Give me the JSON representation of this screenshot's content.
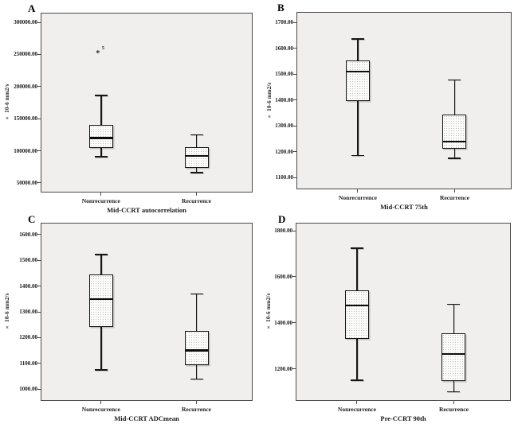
{
  "figure": {
    "ylabel_shared": "× 10-6 mm2/s",
    "group_labels": [
      "Nonrecurrence",
      "Recurrence"
    ],
    "colors": {
      "plot_background": "#f0efed",
      "frame": "#4a4a4a",
      "box_border": "#141414",
      "box_fill": "#fcfcfb",
      "median": "#0d0d0d",
      "page_background": "#ffffff"
    }
  },
  "chart_data": [
    {
      "type": "box",
      "panel": "A",
      "title": "Mid-CCRT autocorrelation",
      "ylabel": "× 10-6 mm2/s",
      "categories": [
        "Nonrecurrence",
        "Recurrence"
      ],
      "yticks": [
        50000,
        100000,
        150000,
        200000,
        250000,
        300000
      ],
      "ytick_labels": [
        "50000.00",
        "100000.00",
        "150000.00",
        "200000.00",
        "250000.00",
        "300000.00"
      ],
      "ylim": [
        35000,
        315000
      ],
      "grid": false,
      "legend": false,
      "series": [
        {
          "category": "Nonrecurrence",
          "whisker_low": 91000,
          "q1": 104000,
          "median": 120000,
          "q3": 140000,
          "whisker_high": 186000,
          "outliers": [
            {
              "value": 256000,
              "label": "5",
              "marker": "asterisk-extreme"
            }
          ]
        },
        {
          "category": "Recurrence",
          "whisker_low": 66000,
          "q1": 74000,
          "median": 92000,
          "q3": 106000,
          "whisker_high": 125000,
          "outliers": []
        }
      ]
    },
    {
      "type": "box",
      "panel": "B",
      "title": "Mid-CCRT 75th",
      "ylabel": "× 10-6 mm2/s",
      "categories": [
        "Nonrecurrence",
        "Recurrence"
      ],
      "yticks": [
        1100,
        1200,
        1300,
        1400,
        1500,
        1600,
        1700
      ],
      "ytick_labels": [
        "1100.00",
        "1200.00",
        "1300.00",
        "1400.00",
        "1500.00",
        "1600.00",
        "1700.00"
      ],
      "ylim": [
        1055,
        1740
      ],
      "grid": false,
      "legend": false,
      "series": [
        {
          "category": "Nonrecurrence",
          "whisker_low": 1185,
          "q1": 1395,
          "median": 1510,
          "q3": 1553,
          "whisker_high": 1635,
          "outliers": []
        },
        {
          "category": "Recurrence",
          "whisker_low": 1175,
          "q1": 1212,
          "median": 1240,
          "q3": 1345,
          "whisker_high": 1478,
          "outliers": []
        }
      ]
    },
    {
      "type": "box",
      "panel": "C",
      "title": "Mid-CCRT ADCmean",
      "ylabel": "× 10-6 mm2/s",
      "categories": [
        "Nonrecurrence",
        "Recurrence"
      ],
      "yticks": [
        1000,
        1100,
        1200,
        1300,
        1400,
        1500,
        1600
      ],
      "ytick_labels": [
        "1000.00",
        "1100.00",
        "1200.00",
        "1300.00",
        "1400.00",
        "1500.00",
        "1600.00"
      ],
      "ylim": [
        955,
        1645
      ],
      "grid": false,
      "legend": false,
      "series": [
        {
          "category": "Nonrecurrence",
          "whisker_low": 1075,
          "q1": 1242,
          "median": 1350,
          "q3": 1445,
          "whisker_high": 1522,
          "outliers": []
        },
        {
          "category": "Recurrence",
          "whisker_low": 1040,
          "q1": 1095,
          "median": 1150,
          "q3": 1225,
          "whisker_high": 1370,
          "outliers": []
        }
      ]
    },
    {
      "type": "box",
      "panel": "D",
      "title": "Pre-CCRT 90th",
      "ylabel": "× 10-6 mm2/s",
      "categories": [
        "Nonrecurrence",
        "Recurrence"
      ],
      "yticks": [
        1200,
        1400,
        1600,
        1800
      ],
      "ytick_labels": [
        "1200.00",
        "1400.00",
        "1600.00",
        "1800.00"
      ],
      "ylim": [
        1060,
        1835
      ],
      "grid": false,
      "legend": false,
      "series": [
        {
          "category": "Nonrecurrence",
          "whisker_low": 1150,
          "q1": 1330,
          "median": 1475,
          "q3": 1540,
          "whisker_high": 1725,
          "outliers": []
        },
        {
          "category": "Recurrence",
          "whisker_low": 1100,
          "q1": 1148,
          "median": 1265,
          "q3": 1355,
          "whisker_high": 1480,
          "outliers": []
        }
      ]
    }
  ]
}
